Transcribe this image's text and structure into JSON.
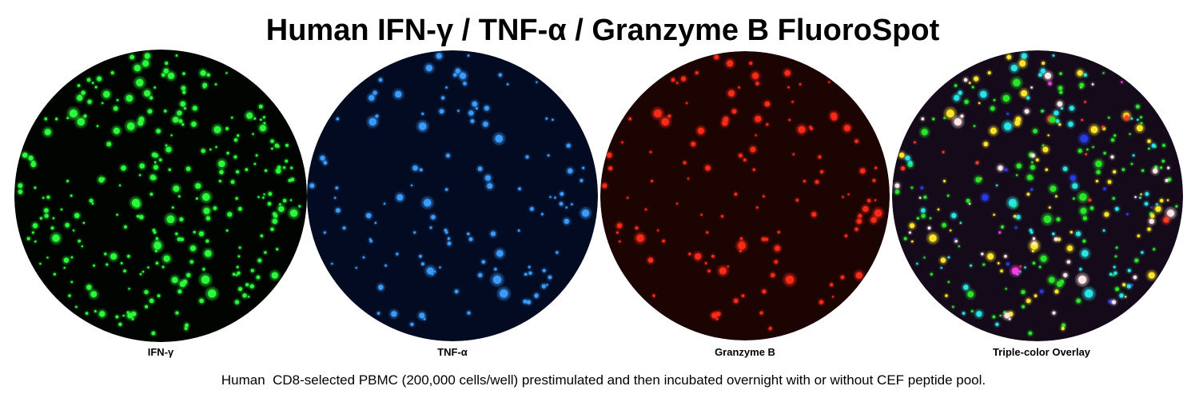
{
  "title": "Human IFN-γ / TNF-α / Granzyme B FluoroSpot",
  "panels": [
    {
      "label": "IFN-γ"
    },
    {
      "label": "TNF-α"
    },
    {
      "label": "Granzyme B"
    },
    {
      "label": "Triple-color Overlay"
    }
  ],
  "caption": "Human  CD8-selected PBMC (200,000 cells/well) prestimulated and then incubated overnight with or without CEF peptide pool."
}
